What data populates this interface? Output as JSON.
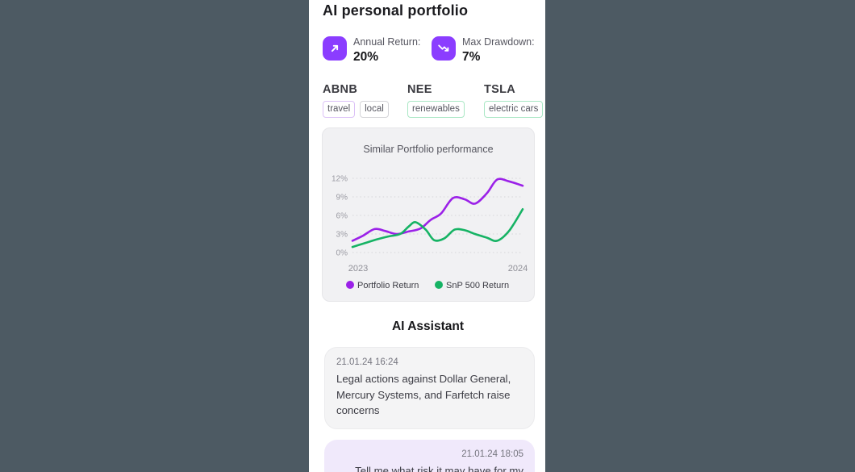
{
  "header": {
    "title": "AI personal portfolio"
  },
  "stats": [
    {
      "icon": "trending-up-icon",
      "label": "Annual Return:",
      "value": "20%"
    },
    {
      "icon": "trending-down-icon",
      "label": "Max Drawdown:",
      "value": "7%"
    }
  ],
  "tickers": [
    {
      "symbol": "ABNB",
      "tags": [
        {
          "label": "travel"
        },
        {
          "label": "local"
        }
      ]
    },
    {
      "symbol": "NEE",
      "tags": [
        {
          "label": "renewables"
        }
      ]
    },
    {
      "symbol": "TSLA",
      "tags": [
        {
          "label": "electric cars"
        }
      ]
    }
  ],
  "chart_data": {
    "type": "line",
    "title": "Similar Portfolio performance",
    "x_axis_labels": [
      "2023",
      "2024"
    ],
    "y_tick_labels": [
      "0%",
      "3%",
      "6%",
      "9%",
      "12%"
    ],
    "ylim": [
      0,
      12
    ],
    "grid": "horizontal-dotted",
    "legend_position": "bottom",
    "series": [
      {
        "name": "Portfolio Return",
        "color": "#9b21e8",
        "x": [
          0,
          0.06,
          0.13,
          0.19,
          0.26,
          0.33,
          0.4,
          0.46,
          0.52,
          0.59,
          0.66,
          0.72,
          0.79,
          0.85,
          0.92,
          1.0
        ],
        "values": [
          1.9,
          2.7,
          3.8,
          3.5,
          3.0,
          3.4,
          3.9,
          5.3,
          6.3,
          8.8,
          8.6,
          7.9,
          9.6,
          11.8,
          11.5,
          10.8
        ]
      },
      {
        "name": "SnP 500 Return",
        "color": "#16b364",
        "x": [
          0,
          0.07,
          0.14,
          0.21,
          0.28,
          0.33,
          0.37,
          0.43,
          0.48,
          0.54,
          0.6,
          0.66,
          0.72,
          0.79,
          0.85,
          0.92,
          1.0
        ],
        "values": [
          0.9,
          1.5,
          2.1,
          2.6,
          3.0,
          4.2,
          4.9,
          3.7,
          2.0,
          2.3,
          3.7,
          3.6,
          3.0,
          2.4,
          1.9,
          3.5,
          7.0
        ]
      }
    ]
  },
  "assistant": {
    "heading": "AI Assistant",
    "messages": [
      {
        "timestamp": "21.01.24 16:24",
        "text": "Legal actions against Dollar General, Mercury Systems, and Farfetch raise concerns",
        "side": "left"
      },
      {
        "timestamp": "21.01.24 18:05",
        "text": "Tell me what risk it may have for my",
        "side": "right"
      }
    ]
  },
  "colors": {
    "background": "#4d5a63",
    "panel": "#ffffff",
    "accent_purple": "#8b3dff",
    "line_purple": "#9b21e8",
    "line_green": "#16b364",
    "tag_border_purple": "#dcc2f7",
    "tag_border_gray": "#d4d4d8",
    "tag_border_green": "#a9e7c4",
    "bubble_gray": "#f4f4f5",
    "bubble_purple": "#f0e9fb",
    "chart_card": "#f1f1f3"
  }
}
